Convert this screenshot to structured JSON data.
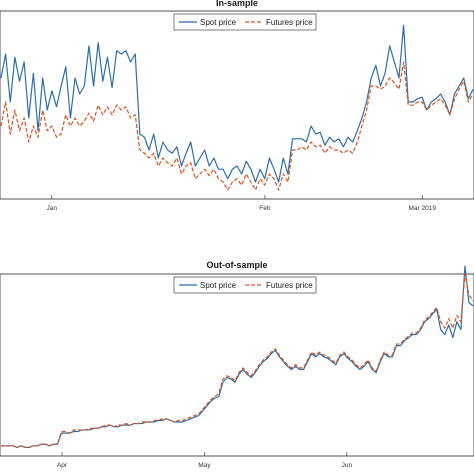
{
  "chart_data": [
    {
      "type": "line",
      "title": "In-sample",
      "xlabel": "",
      "ylabel": "",
      "x_ticks": [
        "Jan",
        "Feb",
        "Mar 2019"
      ],
      "x_tick_pos": [
        10,
        52,
        83
      ],
      "x_range": [
        0,
        93
      ],
      "ylim": [
        0,
        100
      ],
      "grid": false,
      "legend_position": "top-right",
      "series": [
        {
          "name": "Spot price",
          "color": "#2e6ea6",
          "style": "solid",
          "values": [
            75,
            90,
            60,
            88,
            73,
            85,
            50,
            78,
            42,
            75,
            55,
            67,
            57,
            70,
            82,
            50,
            75,
            65,
            70,
            95,
            70,
            97,
            73,
            88,
            69,
            92,
            90,
            92,
            85,
            90,
            40,
            38,
            30,
            40,
            25,
            35,
            30,
            28,
            32,
            20,
            28,
            35,
            20,
            25,
            30,
            20,
            25,
            18,
            18,
            12,
            18,
            20,
            15,
            23,
            18,
            10,
            18,
            12,
            25,
            18,
            10,
            25,
            15,
            37,
            37,
            37,
            35,
            45,
            40,
            41,
            33,
            38,
            35,
            37,
            32,
            38,
            35,
            42,
            50,
            60,
            75,
            83,
            70,
            78,
            95,
            85,
            75,
            108,
            60,
            60,
            62,
            63,
            55,
            60,
            62,
            65,
            60,
            52,
            65,
            70,
            75,
            62,
            68
          ]
        },
        {
          "name": "Futures price",
          "color": "#d9531e",
          "style": "dashed",
          "values": [
            45,
            60,
            40,
            55,
            42,
            50,
            35,
            45,
            38,
            55,
            42,
            45,
            38,
            40,
            52,
            45,
            50,
            45,
            48,
            53,
            48,
            58,
            52,
            57,
            52,
            58,
            55,
            57,
            50,
            52,
            30,
            28,
            25,
            28,
            20,
            25,
            22,
            20,
            25,
            15,
            20,
            22,
            12,
            15,
            18,
            14,
            18,
            12,
            10,
            5,
            10,
            12,
            8,
            15,
            10,
            5,
            12,
            8,
            15,
            12,
            5,
            15,
            10,
            30,
            30,
            32,
            30,
            35,
            32,
            33,
            28,
            32,
            30,
            30,
            28,
            30,
            28,
            35,
            45,
            55,
            70,
            70,
            68,
            70,
            75,
            72,
            68,
            85,
            58,
            58,
            60,
            60,
            55,
            58,
            60,
            62,
            58,
            52,
            62,
            68,
            73,
            60,
            65
          ]
        }
      ]
    },
    {
      "type": "line",
      "title": "Out-of-sample",
      "xlabel": "",
      "ylabel": "",
      "x_ticks": [
        "Apr",
        "May",
        "Jun"
      ],
      "x_tick_pos": [
        15,
        50,
        85
      ],
      "x_range": [
        0,
        116
      ],
      "ylim": [
        0,
        100
      ],
      "grid": false,
      "legend_position": "top-right",
      "series": [
        {
          "name": "Spot price",
          "color": "#2e6ea6",
          "style": "solid",
          "values": [
            2,
            2,
            2,
            2,
            1,
            2,
            1,
            1,
            2,
            2,
            3,
            3,
            2,
            3,
            3,
            10,
            10,
            10,
            11,
            11,
            12,
            12,
            12,
            13,
            13,
            14,
            14,
            15,
            14,
            14,
            15,
            15,
            15,
            16,
            16,
            16,
            17,
            17,
            17,
            18,
            18,
            19,
            18,
            17,
            17,
            17,
            18,
            19,
            20,
            21,
            24,
            27,
            30,
            32,
            33,
            42,
            45,
            44,
            42,
            47,
            50,
            47,
            45,
            48,
            52,
            55,
            57,
            60,
            62,
            58,
            55,
            52,
            50,
            52,
            50,
            50,
            55,
            60,
            58,
            60,
            58,
            57,
            55,
            53,
            58,
            60,
            57,
            55,
            52,
            50,
            52,
            55,
            50,
            48,
            55,
            60,
            58,
            58,
            65,
            65,
            68,
            70,
            72,
            72,
            75,
            80,
            82,
            85,
            88,
            75,
            72,
            78,
            70,
            80,
            75,
            115,
            92,
            90
          ]
        },
        {
          "name": "Futures price",
          "color": "#d9531e",
          "style": "dashed",
          "values": [
            2,
            2,
            2,
            2,
            1,
            2,
            1,
            1,
            2,
            2,
            3,
            3,
            2,
            3,
            3,
            11,
            11,
            10,
            12,
            12,
            12,
            12,
            13,
            13,
            13,
            14,
            15,
            15,
            14,
            15,
            15,
            16,
            15,
            16,
            16,
            17,
            17,
            17,
            18,
            18,
            19,
            19,
            18,
            17,
            18,
            18,
            19,
            20,
            21,
            22,
            25,
            28,
            31,
            33,
            35,
            44,
            46,
            45,
            43,
            48,
            51,
            48,
            46,
            49,
            53,
            56,
            58,
            61,
            63,
            59,
            56,
            53,
            51,
            53,
            51,
            51,
            56,
            61,
            59,
            61,
            59,
            58,
            56,
            54,
            59,
            61,
            58,
            56,
            53,
            51,
            53,
            56,
            51,
            49,
            56,
            61,
            59,
            59,
            66,
            66,
            69,
            71,
            73,
            73,
            76,
            81,
            83,
            86,
            89,
            80,
            76,
            82,
            76,
            84,
            80,
            110,
            97,
            93
          ]
        }
      ]
    }
  ]
}
